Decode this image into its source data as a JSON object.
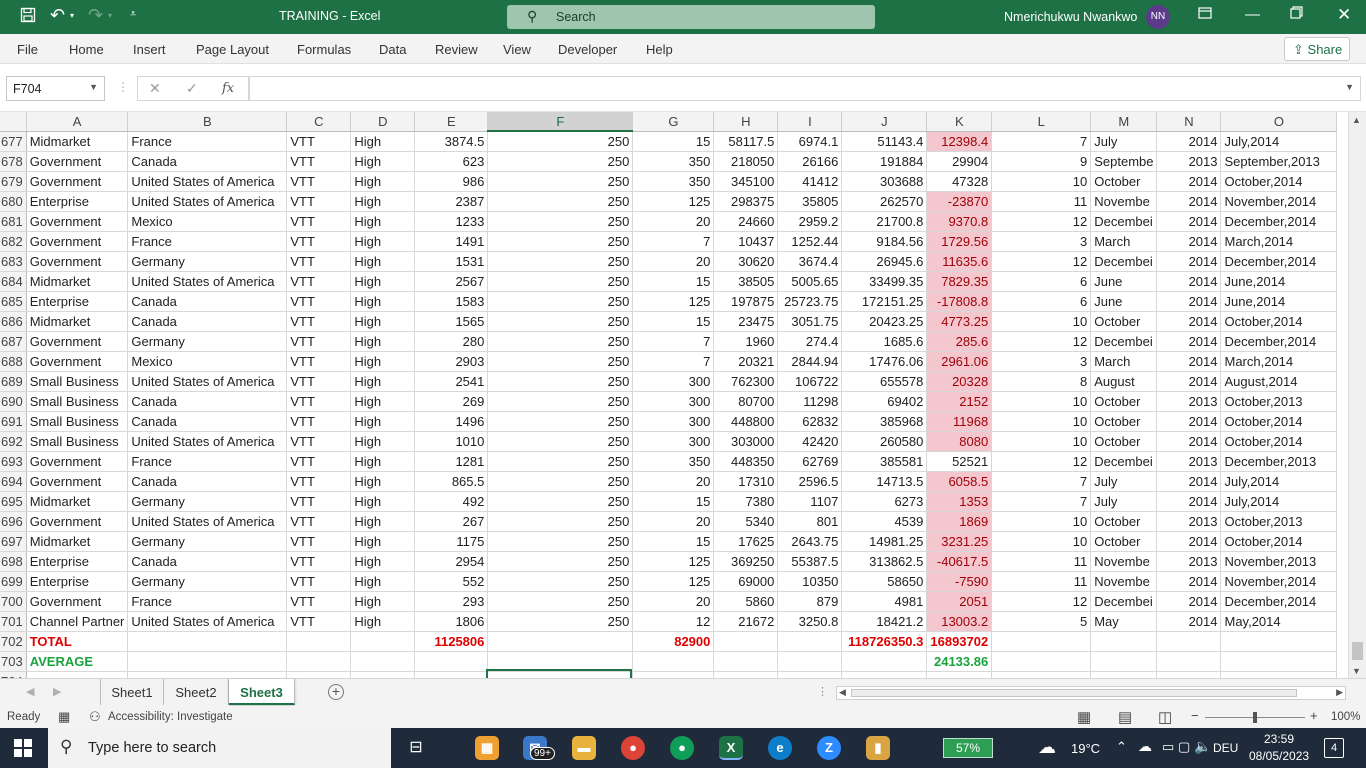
{
  "window": {
    "title": "TRAINING  -  Excel",
    "search_placeholder": "Search",
    "user_name": "Nmerichukwu Nwankwo",
    "user_initials": "NN"
  },
  "menu": {
    "items": [
      "File",
      "Home",
      "Insert",
      "Page Layout",
      "Formulas",
      "Data",
      "Review",
      "View",
      "Developer",
      "Help"
    ],
    "share_label": "Share"
  },
  "formula_bar": {
    "name_box": "F704",
    "fx_label": "fx",
    "formula": ""
  },
  "grid": {
    "columns": [
      "A",
      "B",
      "C",
      "D",
      "E",
      "F",
      "G",
      "H",
      "I",
      "J",
      "K",
      "L",
      "M",
      "N",
      "O"
    ],
    "selected_column": "F",
    "rows": [
      {
        "r": "677",
        "a": "Midmarket",
        "b": "France",
        "c": "VTT",
        "d": "High",
        "e": "3874.5",
        "f": "250",
        "g": "15",
        "h": "58117.5",
        "i": "6974.1",
        "j": "51143.4",
        "k": "12398.4",
        "l": "7",
        "m": "July",
        "n": "2014",
        "o": "July,2014"
      },
      {
        "r": "678",
        "a": "Government",
        "b": "Canada",
        "c": "VTT",
        "d": "High",
        "e": "623",
        "f": "250",
        "g": "350",
        "h": "218050",
        "i": "26166",
        "j": "191884",
        "k": "29904",
        "l": "9",
        "m": "Septembe",
        "n": "2013",
        "o": "September,2013"
      },
      {
        "r": "679",
        "a": "Government",
        "b": "United States of America",
        "c": "VTT",
        "d": "High",
        "e": "986",
        "f": "250",
        "g": "350",
        "h": "345100",
        "i": "41412",
        "j": "303688",
        "k": "47328",
        "l": "10",
        "m": "October",
        "n": "2014",
        "o": "October,2014"
      },
      {
        "r": "680",
        "a": "Enterprise",
        "b": "United States of America",
        "c": "VTT",
        "d": "High",
        "e": "2387",
        "f": "250",
        "g": "125",
        "h": "298375",
        "i": "35805",
        "j": "262570",
        "k": "-23870",
        "l": "11",
        "m": "Novembe",
        "n": "2014",
        "o": "November,2014"
      },
      {
        "r": "681",
        "a": "Government",
        "b": "Mexico",
        "c": "VTT",
        "d": "High",
        "e": "1233",
        "f": "250",
        "g": "20",
        "h": "24660",
        "i": "2959.2",
        "j": "21700.8",
        "k": "9370.8",
        "l": "12",
        "m": "Decembei",
        "n": "2014",
        "o": "December,2014"
      },
      {
        "r": "682",
        "a": "Government",
        "b": "France",
        "c": "VTT",
        "d": "High",
        "e": "1491",
        "f": "250",
        "g": "7",
        "h": "10437",
        "i": "1252.44",
        "j": "9184.56",
        "k": "1729.56",
        "l": "3",
        "m": "March",
        "n": "2014",
        "o": "March,2014"
      },
      {
        "r": "683",
        "a": "Government",
        "b": "Germany",
        "c": "VTT",
        "d": "High",
        "e": "1531",
        "f": "250",
        "g": "20",
        "h": "30620",
        "i": "3674.4",
        "j": "26945.6",
        "k": "11635.6",
        "l": "12",
        "m": "Decembei",
        "n": "2014",
        "o": "December,2014"
      },
      {
        "r": "684",
        "a": "Midmarket",
        "b": "United States of America",
        "c": "VTT",
        "d": "High",
        "e": "2567",
        "f": "250",
        "g": "15",
        "h": "38505",
        "i": "5005.65",
        "j": "33499.35",
        "k": "7829.35",
        "l": "6",
        "m": "June",
        "n": "2014",
        "o": "June,2014"
      },
      {
        "r": "685",
        "a": "Enterprise",
        "b": "Canada",
        "c": "VTT",
        "d": "High",
        "e": "1583",
        "f": "250",
        "g": "125",
        "h": "197875",
        "i": "25723.75",
        "j": "172151.25",
        "k": "-17808.8",
        "l": "6",
        "m": "June",
        "n": "2014",
        "o": "June,2014"
      },
      {
        "r": "686",
        "a": "Midmarket",
        "b": "Canada",
        "c": "VTT",
        "d": "High",
        "e": "1565",
        "f": "250",
        "g": "15",
        "h": "23475",
        "i": "3051.75",
        "j": "20423.25",
        "k": "4773.25",
        "l": "10",
        "m": "October",
        "n": "2014",
        "o": "October,2014"
      },
      {
        "r": "687",
        "a": "Government",
        "b": "Germany",
        "c": "VTT",
        "d": "High",
        "e": "280",
        "f": "250",
        "g": "7",
        "h": "1960",
        "i": "274.4",
        "j": "1685.6",
        "k": "285.6",
        "l": "12",
        "m": "Decembei",
        "n": "2014",
        "o": "December,2014"
      },
      {
        "r": "688",
        "a": "Government",
        "b": "Mexico",
        "c": "VTT",
        "d": "High",
        "e": "2903",
        "f": "250",
        "g": "7",
        "h": "20321",
        "i": "2844.94",
        "j": "17476.06",
        "k": "2961.06",
        "l": "3",
        "m": "March",
        "n": "2014",
        "o": "March,2014"
      },
      {
        "r": "689",
        "a": "Small Business",
        "b": "United States of America",
        "c": "VTT",
        "d": "High",
        "e": "2541",
        "f": "250",
        "g": "300",
        "h": "762300",
        "i": "106722",
        "j": "655578",
        "k": "20328",
        "l": "8",
        "m": "August",
        "n": "2014",
        "o": "August,2014"
      },
      {
        "r": "690",
        "a": "Small Business",
        "b": "Canada",
        "c": "VTT",
        "d": "High",
        "e": "269",
        "f": "250",
        "g": "300",
        "h": "80700",
        "i": "11298",
        "j": "69402",
        "k": "2152",
        "l": "10",
        "m": "October",
        "n": "2013",
        "o": "October,2013"
      },
      {
        "r": "691",
        "a": "Small Business",
        "b": "Canada",
        "c": "VTT",
        "d": "High",
        "e": "1496",
        "f": "250",
        "g": "300",
        "h": "448800",
        "i": "62832",
        "j": "385968",
        "k": "11968",
        "l": "10",
        "m": "October",
        "n": "2014",
        "o": "October,2014"
      },
      {
        "r": "692",
        "a": "Small Business",
        "b": "United States of America",
        "c": "VTT",
        "d": "High",
        "e": "1010",
        "f": "250",
        "g": "300",
        "h": "303000",
        "i": "42420",
        "j": "260580",
        "k": "8080",
        "l": "10",
        "m": "October",
        "n": "2014",
        "o": "October,2014"
      },
      {
        "r": "693",
        "a": "Government",
        "b": "France",
        "c": "VTT",
        "d": "High",
        "e": "1281",
        "f": "250",
        "g": "350",
        "h": "448350",
        "i": "62769",
        "j": "385581",
        "k": "52521",
        "l": "12",
        "m": "Decembei",
        "n": "2013",
        "o": "December,2013"
      },
      {
        "r": "694",
        "a": "Government",
        "b": "Canada",
        "c": "VTT",
        "d": "High",
        "e": "865.5",
        "f": "250",
        "g": "20",
        "h": "17310",
        "i": "2596.5",
        "j": "14713.5",
        "k": "6058.5",
        "l": "7",
        "m": "July",
        "n": "2014",
        "o": "July,2014"
      },
      {
        "r": "695",
        "a": "Midmarket",
        "b": "Germany",
        "c": "VTT",
        "d": "High",
        "e": "492",
        "f": "250",
        "g": "15",
        "h": "7380",
        "i": "1107",
        "j": "6273",
        "k": "1353",
        "l": "7",
        "m": "July",
        "n": "2014",
        "o": "July,2014"
      },
      {
        "r": "696",
        "a": "Government",
        "b": "United States of America",
        "c": "VTT",
        "d": "High",
        "e": "267",
        "f": "250",
        "g": "20",
        "h": "5340",
        "i": "801",
        "j": "4539",
        "k": "1869",
        "l": "10",
        "m": "October",
        "n": "2013",
        "o": "October,2013"
      },
      {
        "r": "697",
        "a": "Midmarket",
        "b": "Germany",
        "c": "VTT",
        "d": "High",
        "e": "1175",
        "f": "250",
        "g": "15",
        "h": "17625",
        "i": "2643.75",
        "j": "14981.25",
        "k": "3231.25",
        "l": "10",
        "m": "October",
        "n": "2014",
        "o": "October,2014"
      },
      {
        "r": "698",
        "a": "Enterprise",
        "b": "Canada",
        "c": "VTT",
        "d": "High",
        "e": "2954",
        "f": "250",
        "g": "125",
        "h": "369250",
        "i": "55387.5",
        "j": "313862.5",
        "k": "-40617.5",
        "l": "11",
        "m": "Novembe",
        "n": "2013",
        "o": "November,2013"
      },
      {
        "r": "699",
        "a": "Enterprise",
        "b": "Germany",
        "c": "VTT",
        "d": "High",
        "e": "552",
        "f": "250",
        "g": "125",
        "h": "69000",
        "i": "10350",
        "j": "58650",
        "k": "-7590",
        "l": "11",
        "m": "Novembe",
        "n": "2014",
        "o": "November,2014"
      },
      {
        "r": "700",
        "a": "Government",
        "b": "France",
        "c": "VTT",
        "d": "High",
        "e": "293",
        "f": "250",
        "g": "20",
        "h": "5860",
        "i": "879",
        "j": "4981",
        "k": "2051",
        "l": "12",
        "m": "Decembei",
        "n": "2014",
        "o": "December,2014"
      },
      {
        "r": "701",
        "a": "Channel Partner",
        "b": "United States of America",
        "c": "VTT",
        "d": "High",
        "e": "1806",
        "f": "250",
        "g": "12",
        "h": "21672",
        "i": "3250.8",
        "j": "18421.2",
        "k": "13003.2",
        "l": "5",
        "m": "May",
        "n": "2014",
        "o": "May,2014"
      }
    ],
    "highlighted_k_rows": [
      "677",
      "680",
      "681",
      "682",
      "683",
      "684",
      "685",
      "686",
      "687",
      "688",
      "689",
      "690",
      "691",
      "692",
      "694",
      "695",
      "696",
      "697",
      "698",
      "699",
      "700",
      "701"
    ],
    "total_row": {
      "r": "702",
      "label": "TOTAL",
      "e": "1125806",
      "g": "82900",
      "j": "118726350.3",
      "k": "16893702"
    },
    "average_row": {
      "r": "703",
      "label": "AVERAGE",
      "k": "24133.86"
    },
    "partial_row": "704"
  },
  "sheets": {
    "tabs": [
      "Sheet1",
      "Sheet2",
      "Sheet3"
    ],
    "active": "Sheet3"
  },
  "status": {
    "ready": "Ready",
    "accessibility": "Accessibility: Investigate",
    "zoom": "100%"
  },
  "taskbar": {
    "search_placeholder": "Type here to search",
    "mail_badge": "99+",
    "battery": "57%",
    "temperature": "19°C",
    "language": "DEU",
    "time": "23:59",
    "date": "08/05/2023",
    "notifications": "4"
  },
  "colors": {
    "excel_green": "#1e7145",
    "negative_fill": "#f4c7cf",
    "negative_text": "#9c0006",
    "total_red": "#e00000",
    "average_green": "#1aa33e"
  }
}
